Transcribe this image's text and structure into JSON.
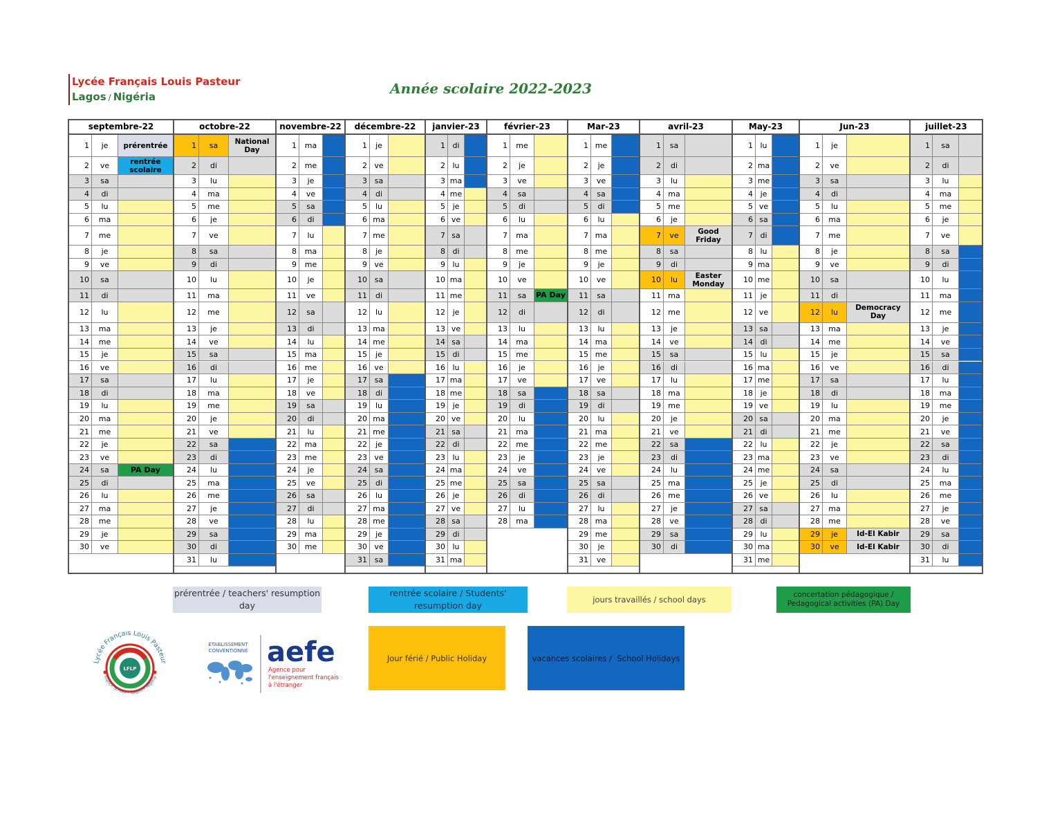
{
  "school": {
    "name": "Lycée Français Louis Pasteur",
    "city": "Lagos",
    "separator": "/",
    "country": "Nigéria"
  },
  "title": "Année scolaire 2022-2023",
  "colors": {
    "pre": "#d9dde9",
    "rentree": "#19a9e4",
    "work": "#fdf7a4",
    "weekend": "#dcdcdc",
    "holiday": "#ffbf0d",
    "vacation": "#1467be",
    "pa": "#1e9c49",
    "white": "#ffffff"
  },
  "legend": {
    "pre": "prérentrée / teachers' resumption day",
    "rentree": "rentrée scolaire / Students' resumption day",
    "work": "jours travaillés / school days",
    "pa": "concertation pédagogique / Pedagogical activities (PA) Day",
    "holiday": "Jour férié / Public Holiday",
    "vacation": "vacances scolaires /  School Holidays"
  },
  "logos": {
    "lflp": {
      "ring_text": "Lycée Français Louis Pasteur",
      "center": "LFLP",
      "bottom": "French School • Lagos • Nigeria"
    },
    "aefe": {
      "tag1": "ÉTABLISSEMENT",
      "tag2": "CONVENTIONNÉ",
      "brand": "aefe",
      "line1": "Agence pour",
      "line2": "l'enseignement français",
      "line3": "à l'étranger"
    }
  },
  "months": [
    {
      "name": "septembre-22",
      "days": 30,
      "first_dow": 3,
      "vac": [],
      "hol": [],
      "notes": {
        "1": "prérentrée",
        "2": "rentrée scolaire",
        "24": "PA Day"
      }
    },
    {
      "name": "octobre-22",
      "days": 31,
      "first_dow": 5,
      "vac": [
        [
          22,
          31
        ]
      ],
      "hol": [
        1
      ],
      "notes": {
        "1": "National Day"
      }
    },
    {
      "name": "novembre-22",
      "days": 30,
      "first_dow": 1,
      "vac": [
        [
          1,
          6
        ]
      ],
      "hol": [],
      "notes": {}
    },
    {
      "name": "décembre-22",
      "days": 31,
      "first_dow": 3,
      "vac": [
        [
          17,
          31
        ]
      ],
      "hol": [],
      "notes": {}
    },
    {
      "name": "janvier-23",
      "days": 31,
      "first_dow": 6,
      "vac": [
        [
          1,
          3
        ]
      ],
      "hol": [],
      "notes": {}
    },
    {
      "name": "février-23",
      "days": 28,
      "first_dow": 2,
      "vac": [
        [
          18,
          28
        ]
      ],
      "hol": [],
      "notes": {
        "11": "PA Day"
      }
    },
    {
      "name": "Mar-23",
      "days": 31,
      "first_dow": 2,
      "vac": [
        [
          1,
          5
        ]
      ],
      "hol": [],
      "notes": {}
    },
    {
      "name": "avril-23",
      "days": 30,
      "first_dow": 5,
      "vac": [
        [
          22,
          30
        ]
      ],
      "hol": [
        7,
        10
      ],
      "notes": {
        "7": "Good Friday",
        "10": "Easter Monday"
      }
    },
    {
      "name": "May-23",
      "days": 31,
      "first_dow": 0,
      "vac": [
        [
          1,
          7
        ]
      ],
      "hol": [],
      "notes": {}
    },
    {
      "name": "Jun-23",
      "days": 30,
      "first_dow": 3,
      "vac": [],
      "hol": [
        12,
        29,
        30
      ],
      "notes": {
        "12": "Democracy Day",
        "29": "Id-El Kabir",
        "30": "Id-El Kabir"
      }
    },
    {
      "name": "juillet-23",
      "days": 31,
      "first_dow": 5,
      "vac": [
        [
          8,
          31
        ]
      ],
      "hol": [],
      "notes": {}
    }
  ],
  "day_names": [
    "lu",
    "ma",
    "me",
    "je",
    "ve",
    "sa",
    "di"
  ]
}
